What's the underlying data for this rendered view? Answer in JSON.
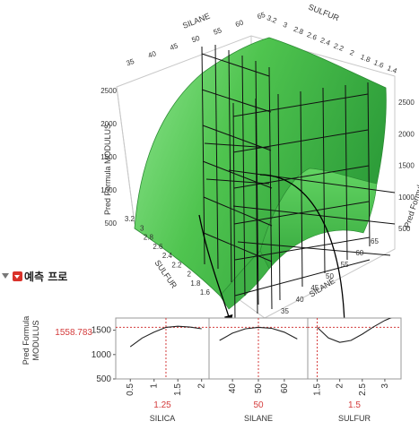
{
  "surface": {
    "z_label": "Pred Formula MODULUS",
    "z_ticks_left": [
      "2500",
      "2000",
      "1500",
      "1000",
      "500"
    ],
    "z_ticks_right": [
      "2500",
      "2000",
      "1500",
      "1000",
      "500"
    ],
    "silane_axis_label": "SILANE",
    "silane_top_ticks": [
      "35",
      "40",
      "45",
      "50",
      "55",
      "60",
      "65"
    ],
    "sulfur_axis_label": "SULFUR",
    "sulfur_top_ticks": [
      "3.2",
      "3",
      "2.8",
      "2.6",
      "2.4",
      "2.2",
      "2",
      "1.8",
      "1.6",
      "1.4"
    ],
    "sulfur_left_ticks": [
      "3.2",
      "3",
      "2.8",
      "2.6",
      "2.4",
      "2.2",
      "2",
      "1.8",
      "1.6"
    ],
    "silane_bottom_label": "SILANE",
    "silane_right_ticks": [
      "65",
      "60",
      "55",
      "50",
      "45",
      "40",
      "35"
    ],
    "surface_color": "#5fd35f",
    "surface_dark": "#2e9e3a"
  },
  "profiler_header": {
    "title": "예측 프로"
  },
  "chart_data": {
    "type": "line",
    "ylabel": "Pred Formula MODULUS",
    "ylabel_lines": [
      "Pred Formula",
      "MODULUS"
    ],
    "current_y": "1558.783",
    "ylim": [
      500,
      1750
    ],
    "yticks": [
      500,
      1000,
      1500
    ],
    "panels": [
      {
        "factor": "SILICA",
        "current": "1.25",
        "xlim": [
          0.25,
          2.1
        ],
        "xticks": [
          "0.5",
          "1",
          "1.5",
          "2"
        ],
        "xtick_values": [
          0.5,
          1,
          1.5,
          2
        ],
        "x": [
          0.5,
          0.75,
          1.0,
          1.25,
          1.5,
          1.75,
          2.0
        ],
        "y": [
          1160,
          1340,
          1460,
          1559,
          1580,
          1565,
          1530
        ]
      },
      {
        "factor": "SILANE",
        "current": "50",
        "xlim": [
          32,
          68
        ],
        "xticks": [
          "40",
          "50",
          "60"
        ],
        "xtick_values": [
          40,
          50,
          60
        ],
        "x": [
          35,
          40,
          45,
          50,
          55,
          60,
          65
        ],
        "y": [
          1290,
          1440,
          1530,
          1559,
          1540,
          1460,
          1320
        ]
      },
      {
        "factor": "SULFUR",
        "current": "1.5",
        "xlim": [
          1.35,
          3.3
        ],
        "xticks": [
          "1.5",
          "2",
          "2.5",
          "3"
        ],
        "xtick_values": [
          1.5,
          2,
          2.5,
          3
        ],
        "x": [
          1.5,
          1.75,
          2.0,
          2.25,
          2.5,
          2.75,
          3.0,
          3.2
        ],
        "y": [
          1559,
          1340,
          1250,
          1290,
          1420,
          1570,
          1700,
          1780
        ]
      }
    ]
  }
}
